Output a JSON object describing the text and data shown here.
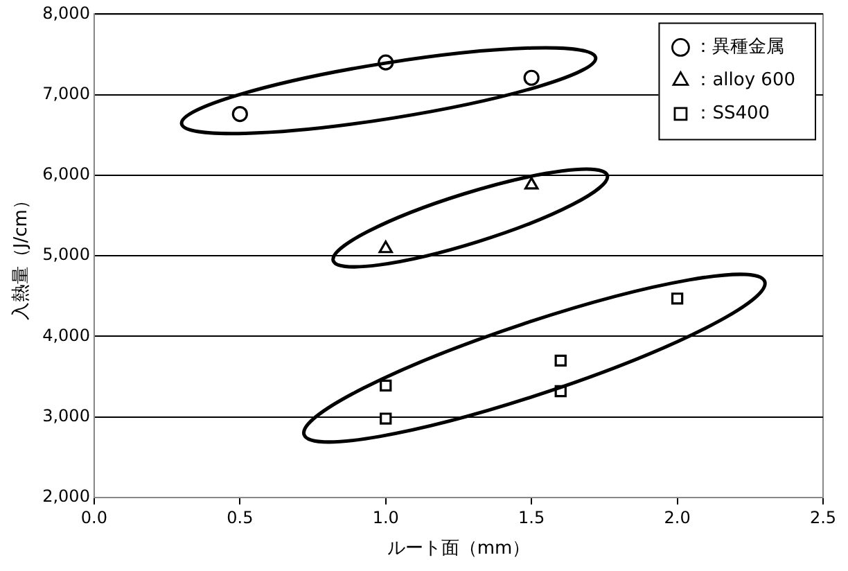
{
  "chart_data": {
    "type": "scatter",
    "xlabel": "ルート面（mm）",
    "ylabel": "入熱量（J/cm）",
    "xlim": [
      0,
      2.5
    ],
    "xticks": [
      {
        "value": 0,
        "label": "0.0"
      },
      {
        "value": 0.5,
        "label": "0.5"
      },
      {
        "value": 1,
        "label": "1.0"
      },
      {
        "value": 1.5,
        "label": "1.5"
      },
      {
        "value": 2,
        "label": "2.0"
      },
      {
        "value": 2.5,
        "label": "2.5"
      }
    ],
    "ylim": [
      2000,
      8000
    ],
    "yticks": [
      {
        "value": 2000,
        "label": "2,000"
      },
      {
        "value": 3000,
        "label": "3,000"
      },
      {
        "value": 4000,
        "label": "4,000"
      },
      {
        "value": 5000,
        "label": "5,000"
      },
      {
        "value": 6000,
        "label": "6,000"
      },
      {
        "value": 7000,
        "label": "7,000"
      },
      {
        "value": 8000,
        "label": "8,000"
      }
    ],
    "grid": "y",
    "legend": "top right",
    "series": [
      {
        "name": "：異種金属",
        "color": "#000000",
        "marker": "circle",
        "x": [
          0.5,
          1.0,
          1.5
        ],
        "values": [
          6760,
          7400,
          7210
        ]
      },
      {
        "name": "：alloy 600",
        "color": "#000000",
        "marker": "triangle",
        "x": [
          1.0,
          1.5
        ],
        "values": [
          5090,
          5880
        ]
      },
      {
        "name": "：SS400",
        "color": "#000000",
        "marker": "square",
        "x": [
          1.0,
          1.0,
          1.6,
          1.6,
          2.0
        ],
        "values": [
          3390,
          2980,
          3700,
          3320,
          4470
        ]
      }
    ]
  }
}
